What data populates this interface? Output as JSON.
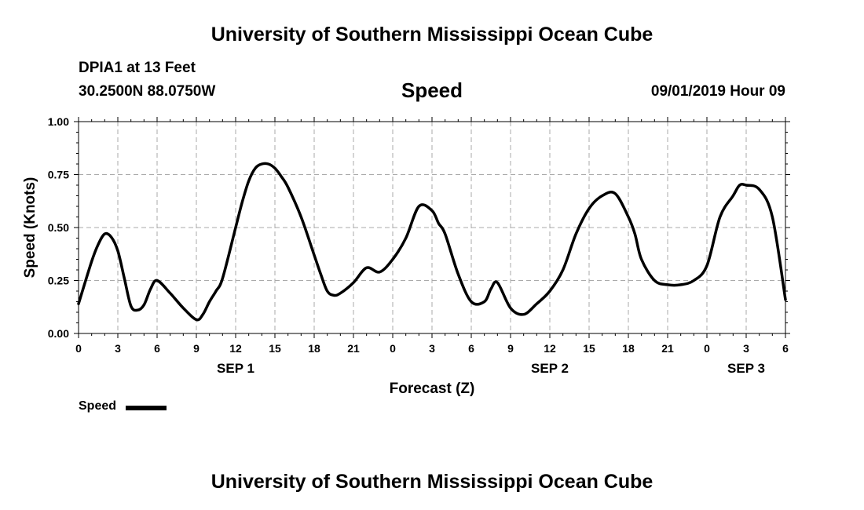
{
  "header": {
    "title": "University of Southern Mississippi Ocean Cube",
    "station": "DPIA1 at 13 Feet",
    "coords": "30.2500N 88.0750W",
    "chart_title": "Speed",
    "datetime": "09/01/2019 Hour 09"
  },
  "footer": {
    "title": "University of Southern Mississippi Ocean Cube"
  },
  "legend": {
    "label": "Speed",
    "color": "#000000"
  },
  "chart_data": {
    "type": "line",
    "title": "Speed",
    "xlabel": "Forecast (Z)",
    "ylabel": "Speed (Knots)",
    "ylim": [
      0,
      1
    ],
    "xlim": [
      0,
      54
    ],
    "yticks": [
      "0.00",
      "0.25",
      "0.50",
      "0.75",
      "1.00"
    ],
    "ytick_values": [
      0,
      0.25,
      0.5,
      0.75,
      1.0
    ],
    "xtick_labels": [
      "0",
      "3",
      "6",
      "9",
      "12",
      "15",
      "18",
      "21",
      "0",
      "3",
      "6",
      "9",
      "12",
      "15",
      "18",
      "21",
      "0",
      "3",
      "6"
    ],
    "xtick_values": [
      0,
      3,
      6,
      9,
      12,
      15,
      18,
      21,
      24,
      27,
      30,
      33,
      36,
      39,
      42,
      45,
      48,
      51,
      54
    ],
    "date_labels": [
      {
        "label": "SEP 1",
        "x": 12
      },
      {
        "label": "SEP 2",
        "x": 36
      },
      {
        "label": "SEP 3",
        "x": 51
      }
    ],
    "grid": true,
    "legend_position": "bottom-left",
    "series": [
      {
        "name": "Speed",
        "color": "#000000",
        "x": [
          0,
          1,
          1.5,
          2,
          2.5,
          3,
          3.5,
          4,
          4.5,
          5,
          5.5,
          6,
          7,
          8,
          9,
          9.5,
          10,
          10.5,
          11,
          12,
          12.5,
          13,
          13.5,
          14,
          14.5,
          15,
          15.5,
          16,
          17,
          18,
          18.5,
          19,
          19.5,
          20,
          21,
          22,
          23,
          24,
          25,
          26,
          27,
          27.5,
          28,
          29,
          30,
          31,
          31.5,
          32,
          33,
          34,
          35,
          36,
          37,
          38,
          39,
          40,
          41,
          42,
          42.5,
          43,
          44,
          45,
          46,
          47,
          48,
          49,
          50,
          50.5,
          51,
          52,
          53,
          54
        ],
        "y": [
          0.14,
          0.34,
          0.42,
          0.47,
          0.455,
          0.39,
          0.26,
          0.13,
          0.11,
          0.135,
          0.21,
          0.25,
          0.19,
          0.12,
          0.065,
          0.09,
          0.15,
          0.2,
          0.26,
          0.5,
          0.62,
          0.72,
          0.78,
          0.8,
          0.8,
          0.78,
          0.74,
          0.69,
          0.55,
          0.37,
          0.28,
          0.2,
          0.18,
          0.19,
          0.24,
          0.31,
          0.29,
          0.35,
          0.45,
          0.6,
          0.58,
          0.52,
          0.47,
          0.28,
          0.15,
          0.15,
          0.21,
          0.24,
          0.12,
          0.09,
          0.14,
          0.2,
          0.3,
          0.47,
          0.59,
          0.65,
          0.66,
          0.55,
          0.47,
          0.35,
          0.25,
          0.23,
          0.23,
          0.25,
          0.32,
          0.55,
          0.65,
          0.7,
          0.7,
          0.68,
          0.55,
          0.16
        ]
      }
    ]
  }
}
